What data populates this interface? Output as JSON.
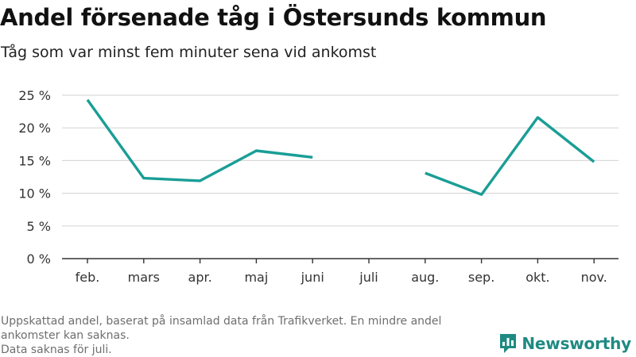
{
  "title": "Andel försenade tåg i Östersunds kommun",
  "subtitle": "Tåg som var minst fem minuter sena vid ankomst",
  "footer": {
    "lines": [
      "Uppskattad andel, baserat på insamlad data från Trafikverket. En mindre andel",
      "ankomster kan saknas.",
      "Data saknas för juli."
    ]
  },
  "brand": {
    "name": "Newsworthy",
    "logo_icon": "newsworthy-logo-icon"
  },
  "colors": {
    "line": "#1a9e96",
    "grid": "#d9d9d9",
    "axis": "#333333",
    "brand": "#1f8a82"
  },
  "chart_data": {
    "type": "line",
    "categories": [
      "feb.",
      "mars",
      "apr.",
      "maj",
      "juni",
      "juli",
      "aug.",
      "sep.",
      "okt.",
      "nov."
    ],
    "series": [
      {
        "values": [
          24.3,
          12.3,
          11.9,
          16.5,
          15.5,
          null,
          13.1,
          9.8,
          21.6,
          14.8
        ]
      }
    ],
    "y_ticks": [
      0,
      5,
      10,
      15,
      20,
      25
    ],
    "y_tick_labels": [
      "0 %",
      "5 %",
      "10 %",
      "15 %",
      "20 %",
      "25 %"
    ],
    "ylim": [
      0,
      25
    ],
    "grid": true,
    "legend": "none"
  }
}
